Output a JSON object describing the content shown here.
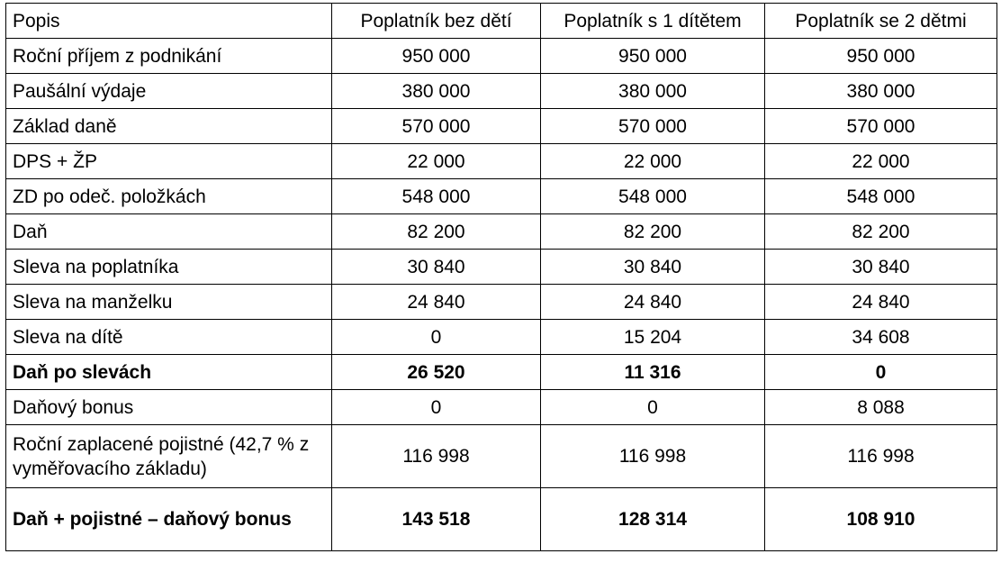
{
  "table": {
    "header": [
      "Popis",
      "Poplatník bez dětí",
      "Poplatník s 1 dítětem",
      "Poplatník se 2 dětmi"
    ],
    "rows": [
      {
        "label": "Roční příjem z podnikání",
        "values": [
          "950 000",
          "950 000",
          "950 000"
        ],
        "bold": false
      },
      {
        "label": "Paušální výdaje",
        "values": [
          "380 000",
          "380 000",
          "380 000"
        ],
        "bold": false
      },
      {
        "label": "Základ daně",
        "values": [
          "570 000",
          "570 000",
          "570 000"
        ],
        "bold": false
      },
      {
        "label": "DPS + ŽP",
        "values": [
          "22 000",
          "22 000",
          "22 000"
        ],
        "bold": false
      },
      {
        "label": "ZD po odeč. položkách",
        "values": [
          "548 000",
          "548 000",
          "548 000"
        ],
        "bold": false
      },
      {
        "label": "Daň",
        "values": [
          "82 200",
          "82 200",
          "82 200"
        ],
        "bold": false
      },
      {
        "label": "Sleva na poplatníka",
        "values": [
          "30 840",
          "30 840",
          "30 840"
        ],
        "bold": false
      },
      {
        "label": "Sleva na manželku",
        "values": [
          "24 840",
          "24 840",
          "24 840"
        ],
        "bold": false
      },
      {
        "label": "Sleva na dítě",
        "values": [
          "0",
          "15 204",
          "34 608"
        ],
        "bold": false
      },
      {
        "label": "Daň po slevách",
        "values": [
          "26 520",
          "11 316",
          "0"
        ],
        "bold": true
      },
      {
        "label": "Daňový bonus",
        "values": [
          "0",
          "0",
          "8 088"
        ],
        "bold": false
      },
      {
        "label": "Roční zaplacené pojistné (42,7 % z vyměřovacího základu)",
        "values": [
          "116 998",
          "116 998",
          "116 998"
        ],
        "bold": false
      },
      {
        "label": "Daň + pojistné – daňový bonus",
        "values": [
          "143 518",
          "128 314",
          "108 910"
        ],
        "bold": true
      }
    ]
  }
}
